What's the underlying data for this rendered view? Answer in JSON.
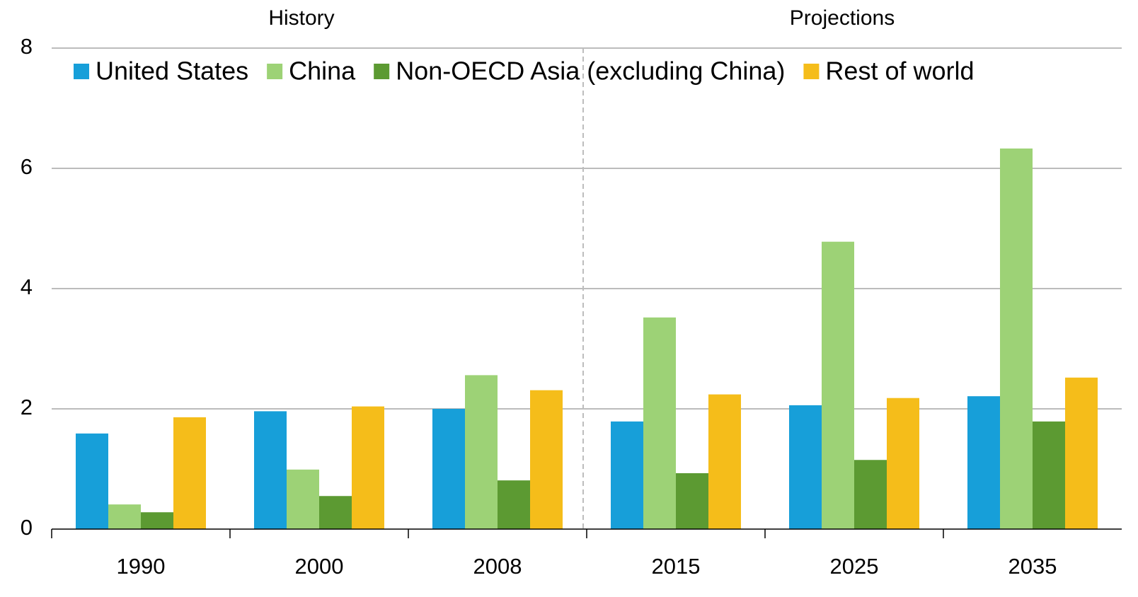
{
  "chart_data": {
    "type": "bar",
    "annotations": [
      "History",
      "Projections"
    ],
    "categories": [
      "1990",
      "2000",
      "2008",
      "2015",
      "2025",
      "2035"
    ],
    "series": [
      {
        "name": "United States",
        "color": "#179fd9",
        "values": [
          1.59,
          1.96,
          2.0,
          1.79,
          2.06,
          2.21
        ]
      },
      {
        "name": "China",
        "color": "#9dd276",
        "values": [
          0.41,
          0.99,
          2.56,
          3.52,
          4.78,
          6.33
        ]
      },
      {
        "name": "Non-OECD Asia (excluding China)",
        "color": "#5c9a32",
        "values": [
          0.28,
          0.55,
          0.81,
          0.93,
          1.15,
          1.79
        ]
      },
      {
        "name": "Rest of world",
        "color": "#f5bd1a",
        "values": [
          1.86,
          2.04,
          2.31,
          2.24,
          2.18,
          2.52
        ]
      }
    ],
    "ylim": [
      0,
      8
    ],
    "yticks": [
      0,
      2,
      4,
      6,
      8
    ],
    "grid": true,
    "legend": "top"
  }
}
